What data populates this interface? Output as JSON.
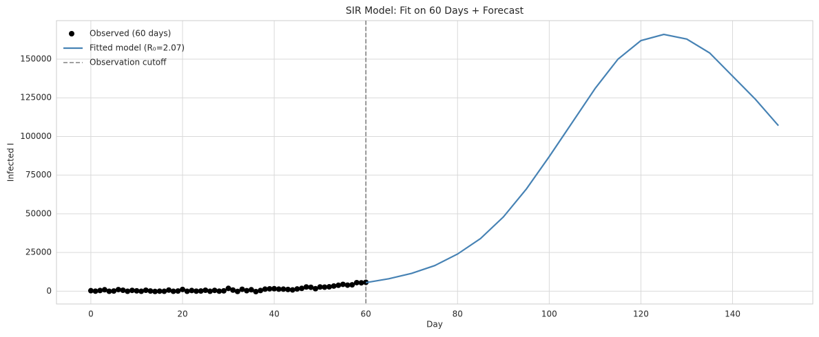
{
  "chart_data": {
    "type": "line",
    "title": "SIR Model: Fit on 60 Days + Forecast",
    "x_label": "Day",
    "y_label": "Infected I",
    "xlim": [
      -7.5,
      157.5
    ],
    "ylim": [
      -8300,
      174900
    ],
    "xticks": [
      0,
      20,
      40,
      60,
      80,
      100,
      120,
      140
    ],
    "yticks": [
      0,
      25000,
      50000,
      75000,
      100000,
      125000,
      150000
    ],
    "grid": true,
    "legend": "upper-left",
    "series": [
      {
        "name": "Observed (60 days)",
        "type": "scatter",
        "color": "#000000",
        "x": [
          0,
          1,
          2,
          3,
          4,
          5,
          6,
          7,
          8,
          9,
          10,
          11,
          12,
          13,
          14,
          15,
          16,
          17,
          18,
          19,
          20,
          21,
          22,
          23,
          24,
          25,
          26,
          27,
          28,
          29,
          30,
          31,
          32,
          33,
          34,
          35,
          36,
          37,
          38,
          39,
          40,
          41,
          42,
          43,
          44,
          45,
          46,
          47,
          48,
          49,
          50,
          51,
          52,
          53,
          54,
          55,
          56,
          57,
          58,
          59,
          60
        ],
        "values": [
          300,
          0,
          400,
          900,
          -100,
          100,
          1000,
          600,
          -100,
          500,
          200,
          -100,
          600,
          100,
          -200,
          0,
          -100,
          700,
          -100,
          100,
          1100,
          -100,
          400,
          0,
          100,
          600,
          -100,
          500,
          0,
          200,
          1800,
          700,
          -200,
          1200,
          300,
          900,
          -300,
          400,
          1300,
          1500,
          1600,
          1300,
          1300,
          1100,
          800,
          1400,
          1800,
          2700,
          2500,
          1600,
          2700,
          2600,
          2800,
          3300,
          3800,
          4400,
          3900,
          4100,
          5500,
          5400,
          5700
        ]
      },
      {
        "name": "Fitted model (R₀=2.07)",
        "type": "line",
        "color": "#4682b4",
        "x": [
          60,
          65,
          70,
          75,
          80,
          85,
          90,
          95,
          100,
          105,
          110,
          115,
          120,
          125,
          130,
          135,
          140,
          145,
          150
        ],
        "values": [
          5500,
          8000,
          11500,
          16500,
          24000,
          34000,
          48000,
          66000,
          87000,
          109000,
          131000,
          150000,
          162000,
          166000,
          163000,
          154000,
          139000,
          124000,
          107000
        ]
      }
    ],
    "vlines": [
      {
        "name": "Observation cutoff",
        "x": 60,
        "color": "#808080",
        "style": "dashed"
      }
    ]
  }
}
